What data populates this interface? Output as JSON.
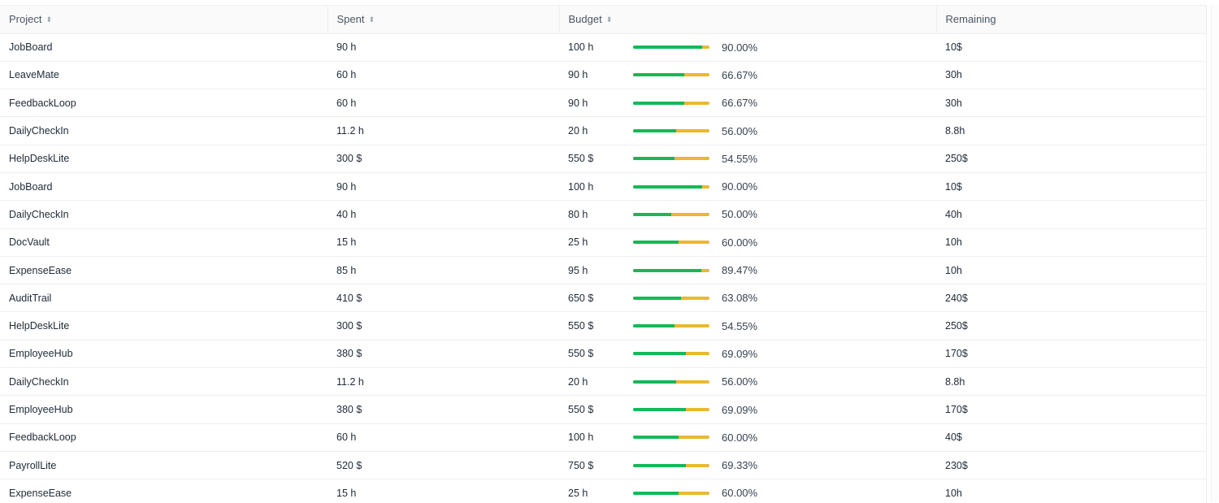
{
  "columns": [
    {
      "label": "Project",
      "sortable": true
    },
    {
      "label": "Spent",
      "sortable": true
    },
    {
      "label": "Budget",
      "sortable": true
    },
    {
      "label": "Remaining",
      "sortable": false
    }
  ],
  "rows": [
    {
      "project": "JobBoard",
      "spent": "90 h",
      "budget": "100 h",
      "percent": "90.00%",
      "progress": 0.9,
      "remaining": "10$"
    },
    {
      "project": "LeaveMate",
      "spent": "60 h",
      "budget": "90 h",
      "percent": "66.67%",
      "progress": 0.6667,
      "remaining": "30h"
    },
    {
      "project": "FeedbackLoop",
      "spent": "60 h",
      "budget": "90 h",
      "percent": "66.67%",
      "progress": 0.6667,
      "remaining": "30h"
    },
    {
      "project": "DailyCheckIn",
      "spent": "11.2 h",
      "budget": "20 h",
      "percent": "56.00%",
      "progress": 0.56,
      "remaining": "8.8h"
    },
    {
      "project": "HelpDeskLite",
      "spent": "300 $",
      "budget": "550 $",
      "percent": "54.55%",
      "progress": 0.5455,
      "remaining": "250$"
    },
    {
      "project": "JobBoard",
      "spent": "90 h",
      "budget": "100 h",
      "percent": "90.00%",
      "progress": 0.9,
      "remaining": "10$"
    },
    {
      "project": "DailyCheckIn",
      "spent": "40 h",
      "budget": "80 h",
      "percent": "50.00%",
      "progress": 0.5,
      "remaining": "40h"
    },
    {
      "project": "DocVault",
      "spent": "15 h",
      "budget": "25 h",
      "percent": "60.00%",
      "progress": 0.6,
      "remaining": "10h"
    },
    {
      "project": "ExpenseEase",
      "spent": "85 h",
      "budget": "95 h",
      "percent": "89.47%",
      "progress": 0.8947,
      "remaining": "10h"
    },
    {
      "project": "AuditTrail",
      "spent": "410 $",
      "budget": "650 $",
      "percent": "63.08%",
      "progress": 0.6308,
      "remaining": "240$"
    },
    {
      "project": "HelpDeskLite",
      "spent": "300 $",
      "budget": "550 $",
      "percent": "54.55%",
      "progress": 0.5455,
      "remaining": "250$"
    },
    {
      "project": "EmployeeHub",
      "spent": "380 $",
      "budget": "550 $",
      "percent": "69.09%",
      "progress": 0.6909,
      "remaining": "170$"
    },
    {
      "project": "DailyCheckIn",
      "spent": "11.2 h",
      "budget": "20 h",
      "percent": "56.00%",
      "progress": 0.56,
      "remaining": "8.8h"
    },
    {
      "project": "EmployeeHub",
      "spent": "380 $",
      "budget": "550 $",
      "percent": "69.09%",
      "progress": 0.6909,
      "remaining": "170$"
    },
    {
      "project": "FeedbackLoop",
      "spent": "60 h",
      "budget": "100 h",
      "percent": "60.00%",
      "progress": 0.6,
      "remaining": "40$"
    },
    {
      "project": "PayrollLite",
      "spent": "520 $",
      "budget": "750 $",
      "percent": "69.33%",
      "progress": 0.6933,
      "remaining": "230$"
    },
    {
      "project": "ExpenseEase",
      "spent": "15 h",
      "budget": "25 h",
      "percent": "60.00%",
      "progress": 0.6,
      "remaining": "10h"
    }
  ],
  "icons": {
    "sort": "sort-icon"
  },
  "colors": {
    "progress_fill": "#16b858",
    "progress_track": "#ebb82f"
  }
}
